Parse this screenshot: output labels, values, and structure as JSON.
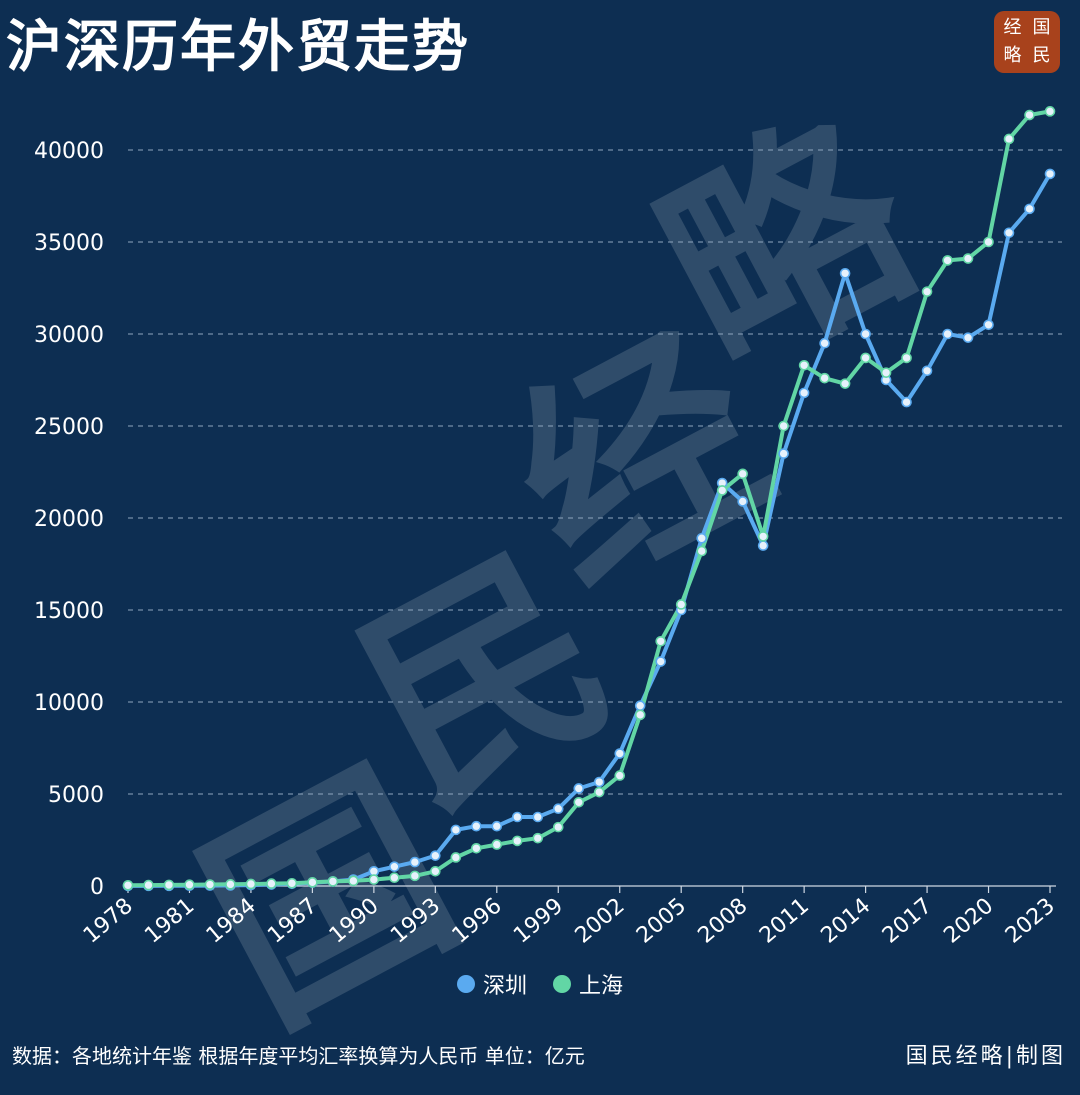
{
  "header": {
    "title": "沪深历年外贸走势",
    "logo_chars": [
      "经",
      "国",
      "略",
      "民"
    ]
  },
  "watermark": [
    "国",
    "民",
    "经",
    "略"
  ],
  "footer": {
    "note": "数据：各地统计年鉴  根据年度平均汇率换算为人民币 单位：亿元",
    "credit": "国民经略|制图"
  },
  "colors": {
    "background": "#0d2e52",
    "shenzhen": "#5aaaf0",
    "shanghai": "#62d6a5",
    "logo": "#a8421c"
  },
  "chart_data": {
    "type": "line",
    "title": "沪深历年外贸走势",
    "xlabel": "",
    "ylabel": "",
    "x_range": [
      1978,
      2023
    ],
    "ylim": [
      0,
      40000
    ],
    "y_ticks": [
      0,
      5000,
      10000,
      15000,
      20000,
      25000,
      30000,
      35000,
      40000
    ],
    "x_tick_labels": [
      "1978",
      "1981",
      "1984",
      "1987",
      "1990",
      "1993",
      "1996",
      "1999",
      "2002",
      "2005",
      "2008",
      "2011",
      "2014",
      "2017",
      "2020",
      "2023"
    ],
    "grid": "horizontal dashed",
    "legend_position": "bottom-center",
    "series": [
      {
        "name": "深圳",
        "color": "#5aaaf0",
        "x": [
          1978,
          1979,
          1980,
          1981,
          1982,
          1983,
          1984,
          1985,
          1986,
          1987,
          1988,
          1989,
          1990,
          1991,
          1992,
          1993,
          1994,
          1995,
          1996,
          1997,
          1998,
          1999,
          2000,
          2001,
          2002,
          2003,
          2004,
          2005,
          2006,
          2007,
          2008,
          2009,
          2010,
          2011,
          2012,
          2013,
          2014,
          2015,
          2016,
          2017,
          2018,
          2019,
          2020,
          2021,
          2022,
          2023
        ],
        "values": [
          5,
          8,
          10,
          15,
          20,
          30,
          50,
          80,
          120,
          180,
          250,
          350,
          800,
          1050,
          1300,
          1650,
          3050,
          3250,
          3250,
          3750,
          3750,
          4200,
          5300,
          5650,
          7200,
          9800,
          12200,
          15000,
          18900,
          21900,
          20900,
          18500,
          23500,
          26800,
          29500,
          33300,
          30000,
          27500,
          26300,
          28000,
          30000,
          29800,
          30500,
          35500,
          36800,
          38700
        ]
      },
      {
        "name": "上海",
        "color": "#62d6a5",
        "x": [
          1978,
          1979,
          1980,
          1981,
          1982,
          1983,
          1984,
          1985,
          1986,
          1987,
          1988,
          1989,
          1990,
          1991,
          1992,
          1993,
          1994,
          1995,
          1996,
          1997,
          1998,
          1999,
          2000,
          2001,
          2002,
          2003,
          2004,
          2005,
          2006,
          2007,
          2008,
          2009,
          2010,
          2011,
          2012,
          2013,
          2014,
          2015,
          2016,
          2017,
          2018,
          2019,
          2020,
          2021,
          2022,
          2023
        ],
        "values": [
          40,
          50,
          60,
          70,
          80,
          90,
          110,
          130,
          150,
          200,
          250,
          280,
          350,
          450,
          550,
          800,
          1550,
          2050,
          2250,
          2450,
          2600,
          3200,
          4550,
          5100,
          6000,
          9300,
          13300,
          15300,
          18200,
          21500,
          22400,
          19000,
          25000,
          28300,
          27600,
          27300,
          28700,
          27900,
          28700,
          32300,
          34000,
          34100,
          35000,
          40600,
          41900,
          42100
        ]
      }
    ]
  }
}
